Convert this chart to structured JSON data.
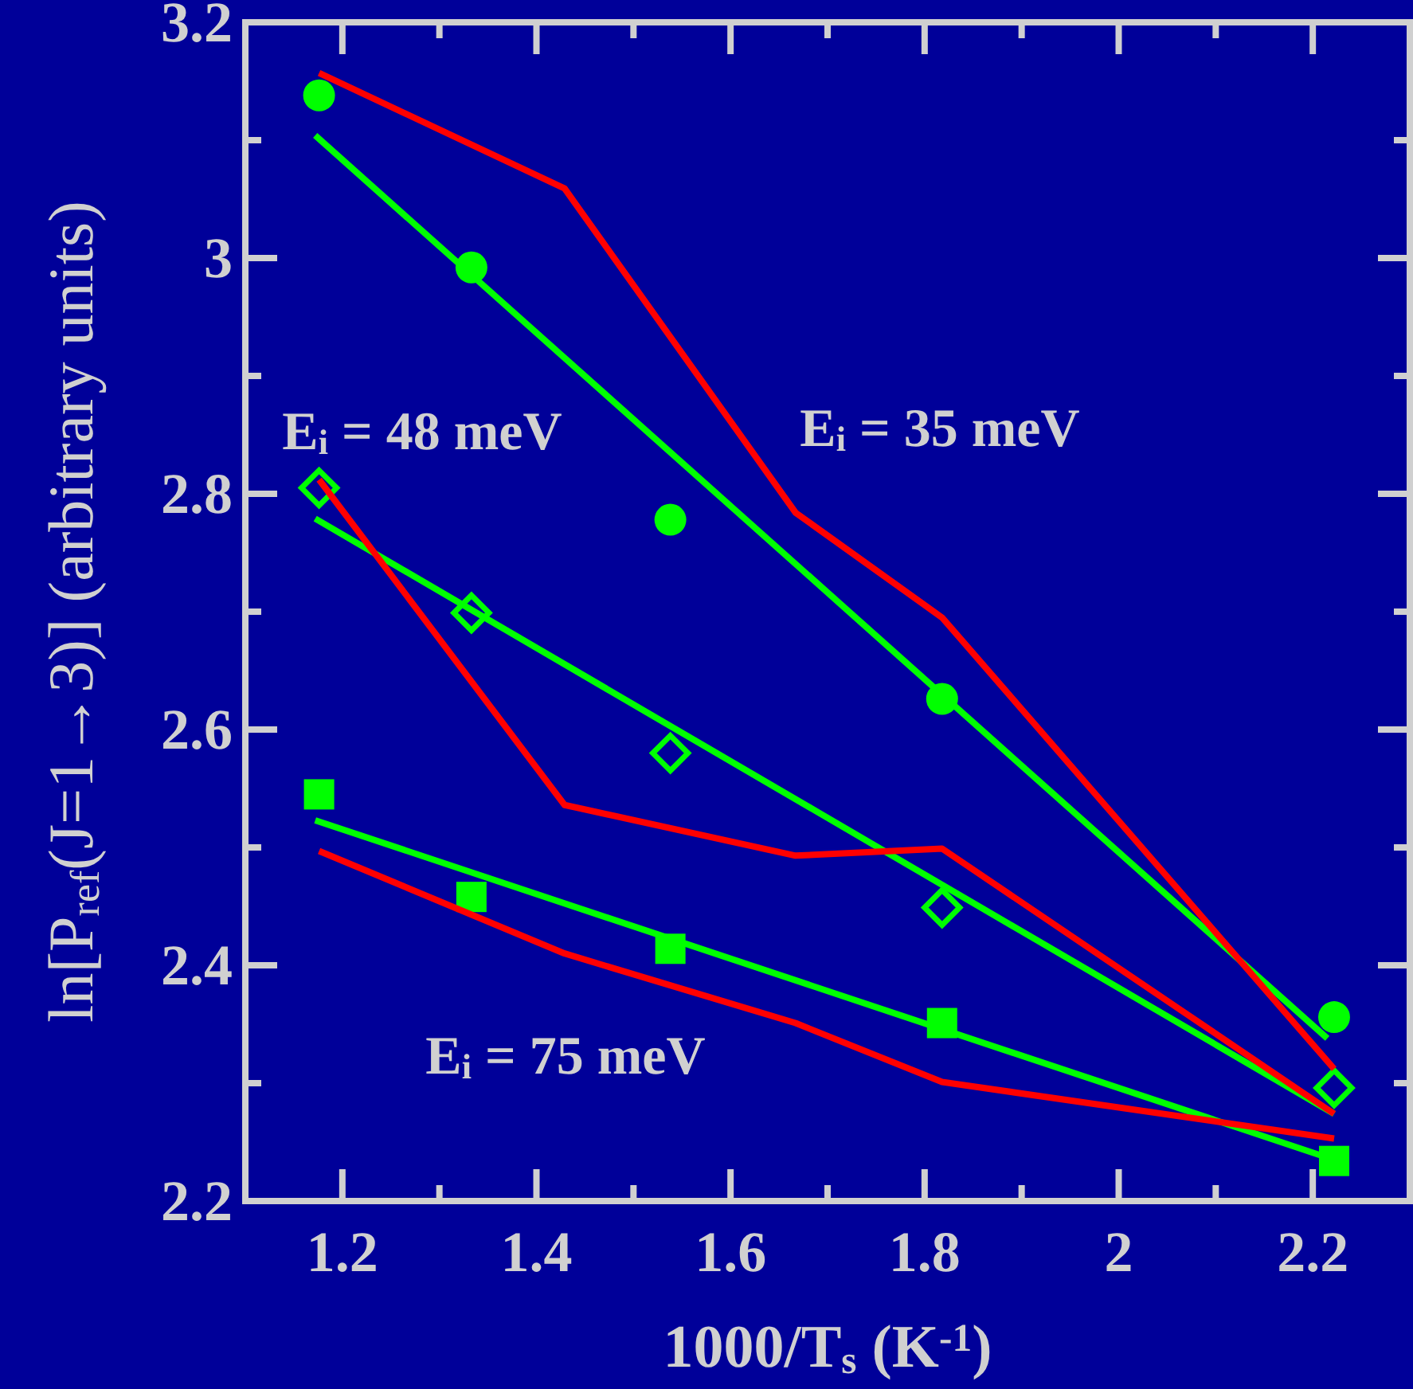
{
  "chart_data": {
    "type": "line",
    "xlabel": "1000/T$_{s}$ (K$^{-1}$)",
    "ylabel": "ln[P$_{ref}$(J=1→3)] (arbitrary units)",
    "xlim": [
      1.1,
      2.3
    ],
    "xticks": [
      1.2,
      {
        "value": 1.3,
        "label": null
      },
      1.4,
      {
        "value": 1.5,
        "label": null
      },
      1.6,
      {
        "value": 1.7,
        "label": null
      },
      1.8,
      {
        "value": 1.9,
        "label": null
      },
      2,
      {
        "value": 2.1,
        "label": null
      },
      2.2
    ],
    "ylim": [
      2.2,
      3.2
    ],
    "yticks": [
      2.2,
      {
        "value": 2.3,
        "label": null
      },
      2.4,
      {
        "value": 2.5,
        "label": null
      },
      2.6,
      {
        "value": 2.7,
        "label": null
      },
      2.8,
      {
        "value": 2.9,
        "label": null
      },
      3,
      {
        "value": 3.1,
        "label": null
      },
      3.2
    ],
    "grid": false,
    "series": [
      {
        "type": "scatter",
        "marker": "circle",
        "color": "#00ff00",
        "x": [
          1.176,
          1.333,
          1.538,
          1.818,
          2.222
        ],
        "values": [
          3.138,
          2.992,
          2.778,
          2.626,
          2.356
        ]
      },
      {
        "type": "scatter",
        "marker": "diamond",
        "color": "#00ff00",
        "x": [
          1.176,
          1.333,
          1.538,
          1.818,
          2.222
        ],
        "values": [
          2.805,
          2.699,
          2.58,
          2.449,
          2.296
        ]
      },
      {
        "type": "scatter",
        "marker": "square",
        "color": "#00ff00",
        "x": [
          1.176,
          1.333,
          1.538,
          1.818,
          2.222
        ],
        "values": [
          2.545,
          2.458,
          2.414,
          2.351,
          2.234
        ]
      },
      {
        "marker": "none",
        "color": "#00ff00",
        "x": [
          1.172,
          2.215
        ],
        "values": [
          3.104,
          2.338
        ]
      },
      {
        "marker": "none",
        "color": "#00ff00",
        "x": [
          1.172,
          2.222
        ],
        "values": [
          2.779,
          2.274
        ]
      },
      {
        "marker": "none",
        "color": "#00ff00",
        "x": [
          1.172,
          2.222
        ],
        "values": [
          2.523,
          2.235
        ]
      },
      {
        "marker": "none",
        "color": "#ff0000",
        "x": [
          1.176,
          1.429,
          1.667,
          1.818,
          2.222
        ],
        "values": [
          3.157,
          3.059,
          2.784,
          2.695,
          2.312
        ]
      },
      {
        "marker": "none",
        "color": "#ff0000",
        "x": [
          1.176,
          1.429,
          1.667,
          1.818,
          2.222
        ],
        "values": [
          2.812,
          2.536,
          2.493,
          2.499,
          2.274
        ]
      },
      {
        "marker": "none",
        "color": "#ff0000",
        "x": [
          1.176,
          1.429,
          1.667,
          1.818,
          2.222
        ],
        "values": [
          2.497,
          2.41,
          2.351,
          2.301,
          2.253
        ]
      }
    ],
    "annotations": [
      "E$_{i}$ = 48 meV",
      "E$_{i}$ = 35 meV",
      "E$_{i}$ = 75 meV"
    ]
  }
}
